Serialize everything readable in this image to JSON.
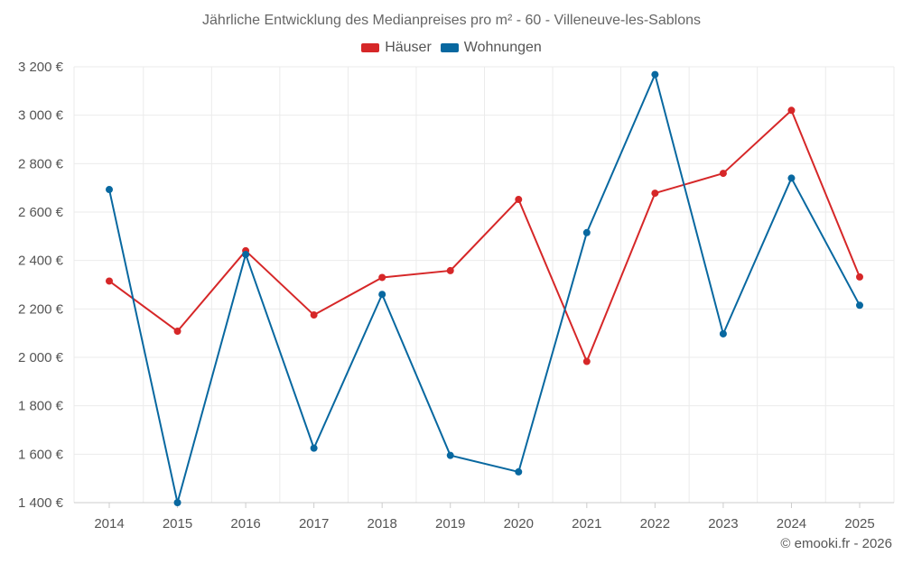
{
  "chart_data": {
    "type": "line",
    "title": "Jährliche Entwicklung des Medianpreises pro m² - 60 - Villeneuve-les-Sablons",
    "categories": [
      "2014",
      "2015",
      "2016",
      "2017",
      "2018",
      "2019",
      "2020",
      "2021",
      "2022",
      "2023",
      "2024",
      "2025"
    ],
    "series": [
      {
        "name": "Häuser",
        "color": "#d62728",
        "values": [
          2315,
          2108,
          2440,
          2175,
          2330,
          2358,
          2652,
          1983,
          2678,
          2760,
          3020,
          2332
        ]
      },
      {
        "name": "Wohnungen",
        "color": "#0868a0",
        "values": [
          2693,
          1400,
          2425,
          1625,
          2260,
          1595,
          1527,
          2515,
          3168,
          2097,
          2740,
          2215
        ]
      }
    ],
    "ylim": [
      1400,
      3200
    ],
    "yticks": [
      1400,
      1600,
      1800,
      2000,
      2200,
      2400,
      2600,
      2800,
      3000,
      3200
    ],
    "ytick_labels": [
      "1 400 €",
      "1 600 €",
      "1 800 €",
      "2 000 €",
      "2 200 €",
      "2 400 €",
      "2 600 €",
      "2 800 €",
      "3 000 €",
      "3 200 €"
    ],
    "xlabel": "",
    "ylabel": "",
    "grid": true,
    "legend_position": "top-center"
  },
  "credit": "© emooki.fr - 2026"
}
